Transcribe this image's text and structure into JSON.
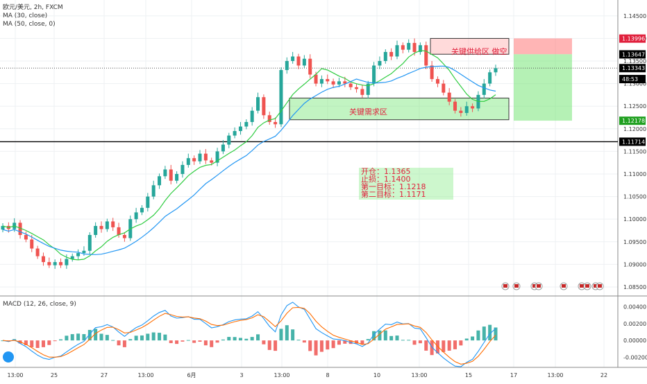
{
  "chart_data": [
    {
      "type": "candlestick",
      "symbol": "欧元/美元, 2h, FXCM",
      "indicators": [
        "MA (30, close)",
        "MA (50, close, 0)"
      ],
      "ylim": [
        1.083,
        1.1485
      ],
      "price_axis_ticks": [
        "1.14500",
        "1.14000",
        "1.13500",
        "1.13000",
        "1.12500",
        "1.12000",
        "1.11500",
        "1.11000",
        "1.10500",
        "1.10000",
        "1.09500",
        "1.09000",
        "1.08500"
      ],
      "time_axis_ticks": [
        "13:00",
        "25",
        "27",
        "13:00",
        "6月",
        "3",
        "13:00",
        "8",
        "10",
        "13:00",
        "15",
        "17",
        "13:00",
        "22"
      ],
      "price_tags": [
        {
          "label": "1.13996",
          "value": 1.13996,
          "color": "#e0203c"
        },
        {
          "label": "1.13647",
          "value": 1.13647,
          "color": "#000000"
        },
        {
          "label": "1.13343",
          "value": 1.13343,
          "color": "#000000"
        },
        {
          "label": "48:53",
          "value": 1.131,
          "color": "#000000"
        },
        {
          "label": "1.12178",
          "value": 1.12178,
          "color": "#20a020"
        },
        {
          "label": "1.11714",
          "value": 1.11714,
          "color": "#000000"
        }
      ],
      "horizontal_line": 1.11714,
      "current_price_line": 1.13343,
      "supply_zone": {
        "label": "关键供给区 做空",
        "top": 1.14,
        "bottom": 1.1365
      },
      "demand_zone": {
        "label": "关键需求区",
        "top": 1.1268,
        "bottom": 1.122
      },
      "trade_box": {
        "entry": 1.1365,
        "stop": 1.14,
        "target": 1.1218
      },
      "close_series": [
        1.0985,
        1.0978,
        1.0992,
        1.0965,
        1.0955,
        1.0935,
        1.0918,
        1.0905,
        1.0898,
        1.0905,
        1.0898,
        1.0912,
        1.0918,
        1.0925,
        1.093,
        1.0965,
        1.0985,
        1.0978,
        1.0995,
        1.0982,
        1.0965,
        1.0958,
        1.1,
        1.1015,
        1.1025,
        1.105,
        1.1075,
        1.1095,
        1.111,
        1.1085,
        1.11,
        1.112,
        1.1135,
        1.1128,
        1.1145,
        1.113,
        1.1125,
        1.115,
        1.1165,
        1.1185,
        1.1195,
        1.1205,
        1.1215,
        1.124,
        1.127,
        1.123,
        1.1215,
        1.121,
        1.133,
        1.135,
        1.136,
        1.134,
        1.1355,
        1.132,
        1.13,
        1.131,
        1.1305,
        1.1298,
        1.1305,
        1.13,
        1.1292,
        1.1288,
        1.1275,
        1.13,
        1.134,
        1.135,
        1.137,
        1.136,
        1.1385,
        1.1375,
        1.139,
        1.137,
        1.1385,
        1.134,
        1.131,
        1.13,
        1.128,
        1.126,
        1.124,
        1.1235,
        1.125,
        1.1245,
        1.1275,
        1.13,
        1.1325,
        1.1334
      ],
      "panels": [
        {
          "name": "price",
          "label": "欧元/美元"
        },
        {
          "name": "macd",
          "label": "MACD (12, 26, close, 9)"
        }
      ],
      "macd_axis_ticks": [
        "0.00400",
        "0.00200",
        "0.00000",
        "-0.00200"
      ],
      "macd_ylim": [
        -0.0032,
        0.0052
      ]
    }
  ],
  "trade_plan": {
    "line1": "开仓：1.1365",
    "line2": "止损：1.1400",
    "line3": "第一目标：1.1218",
    "line4": "第二目标：1.1171"
  },
  "header": {
    "symbol": "欧元/美元, 2h, FXCM",
    "ma30": "MA (30, close)",
    "ma50": "MA (50, close, 0)",
    "macd": "MACD (12, 26, close, 9)"
  },
  "colors": {
    "up": "#26a69a",
    "down": "#ef5350",
    "ma30": "#2ecc40",
    "ma50": "#2196f3",
    "macd_line": "#2196f3",
    "signal_line": "#ff6d00",
    "red_tag": "#e0203c",
    "green_tag": "#20a020"
  },
  "icons": [
    "flag-icon",
    "flag-icon",
    "flag-icon",
    "flag-icon",
    "flag-icon",
    "flag-icon",
    "flag-icon",
    "flag-icon",
    "flag-icon"
  ]
}
